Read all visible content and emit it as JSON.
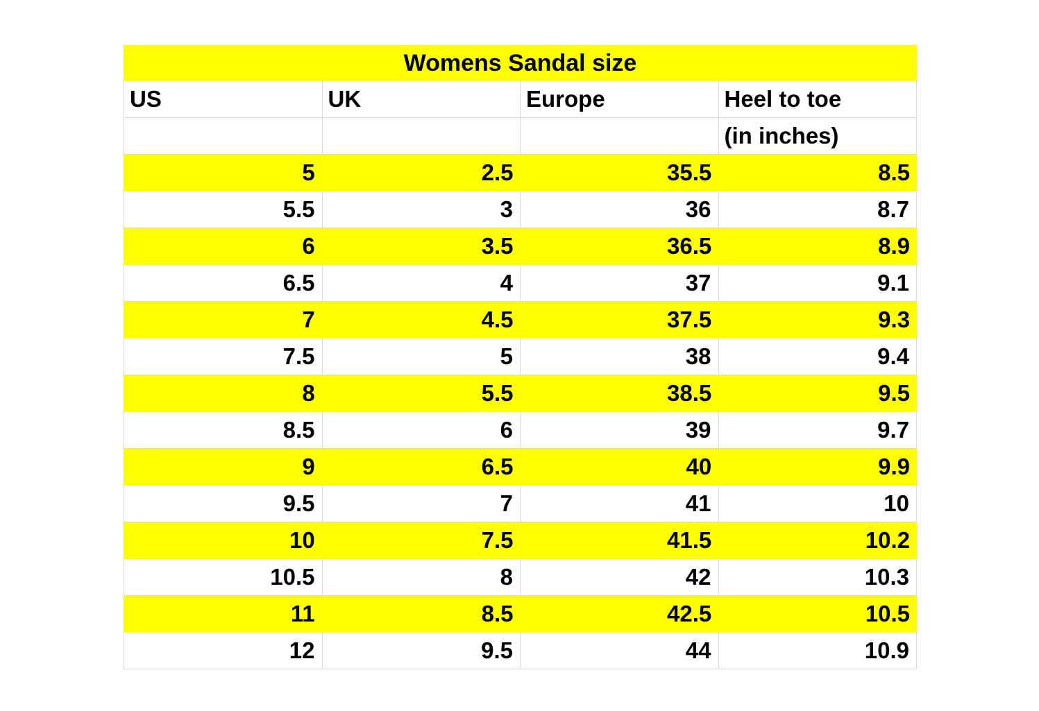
{
  "colors": {
    "highlight": "#ffff00",
    "grid": "#d9d9d9",
    "text": "#000000",
    "background": "#ffffff"
  },
  "table": {
    "title": "Womens Sandal size",
    "columns": [
      "US",
      "UK",
      "Europe",
      "Heel to toe"
    ],
    "unit_subheader": "(in inches)",
    "rows": [
      {
        "us": "5",
        "uk": "2.5",
        "europe": "35.5",
        "heel_to_toe": "8.5",
        "highlighted": true
      },
      {
        "us": "5.5",
        "uk": "3",
        "europe": "36",
        "heel_to_toe": "8.7",
        "highlighted": false
      },
      {
        "us": "6",
        "uk": "3.5",
        "europe": "36.5",
        "heel_to_toe": "8.9",
        "highlighted": true
      },
      {
        "us": "6.5",
        "uk": "4",
        "europe": "37",
        "heel_to_toe": "9.1",
        "highlighted": false
      },
      {
        "us": "7",
        "uk": "4.5",
        "europe": "37.5",
        "heel_to_toe": "9.3",
        "highlighted": true
      },
      {
        "us": "7.5",
        "uk": "5",
        "europe": "38",
        "heel_to_toe": "9.4",
        "highlighted": false
      },
      {
        "us": "8",
        "uk": "5.5",
        "europe": "38.5",
        "heel_to_toe": "9.5",
        "highlighted": true
      },
      {
        "us": "8.5",
        "uk": "6",
        "europe": "39",
        "heel_to_toe": "9.7",
        "highlighted": false
      },
      {
        "us": "9",
        "uk": "6.5",
        "europe": "40",
        "heel_to_toe": "9.9",
        "highlighted": true
      },
      {
        "us": "9.5",
        "uk": "7",
        "europe": "41",
        "heel_to_toe": "10",
        "highlighted": false
      },
      {
        "us": "10",
        "uk": "7.5",
        "europe": "41.5",
        "heel_to_toe": "10.2",
        "highlighted": true
      },
      {
        "us": "10.5",
        "uk": "8",
        "europe": "42",
        "heel_to_toe": "10.3",
        "highlighted": false
      },
      {
        "us": "11",
        "uk": "8.5",
        "europe": "42.5",
        "heel_to_toe": "10.5",
        "highlighted": true
      },
      {
        "us": "12",
        "uk": "9.5",
        "europe": "44",
        "heel_to_toe": "10.9",
        "highlighted": false
      }
    ]
  }
}
